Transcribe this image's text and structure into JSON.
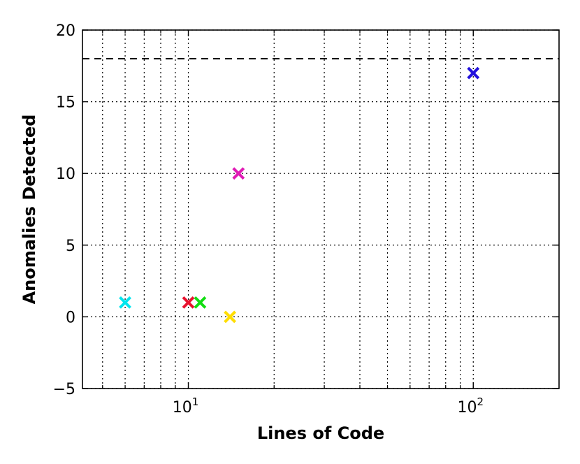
{
  "chart_data": {
    "type": "scatter",
    "title": "",
    "xlabel": "Lines of Code",
    "ylabel": "Anomalies Detected",
    "xscale": "log",
    "xlim": [
      4.25,
      200
    ],
    "ylim": [
      -5,
      20
    ],
    "yticks": [
      -5,
      0,
      5,
      10,
      15,
      20
    ],
    "ytick_labels": [
      "−5",
      "0",
      "5",
      "10",
      "15",
      "20"
    ],
    "xticks_major": [
      10,
      100
    ],
    "xtick_labels": [
      {
        "base": "10",
        "exp": "1"
      },
      {
        "base": "10",
        "exp": "2"
      }
    ],
    "xticks_minor": [
      5,
      6,
      7,
      8,
      9,
      20,
      30,
      40,
      50,
      60,
      70,
      80,
      90
    ],
    "grid": true,
    "marker": "x",
    "points": [
      {
        "x": 6,
        "y": 1,
        "color": "#00e5ee"
      },
      {
        "x": 10,
        "y": 1,
        "color": "#e8112d"
      },
      {
        "x": 11,
        "y": 1,
        "color": "#11dd11"
      },
      {
        "x": 14,
        "y": 0,
        "color": "#ffdd00"
      },
      {
        "x": 15,
        "y": 10,
        "color": "#e01bb5"
      },
      {
        "x": 100,
        "y": 17,
        "color": "#2211dd"
      }
    ],
    "reference_line": {
      "y": 18,
      "style": "dashed",
      "color": "#000000"
    }
  }
}
